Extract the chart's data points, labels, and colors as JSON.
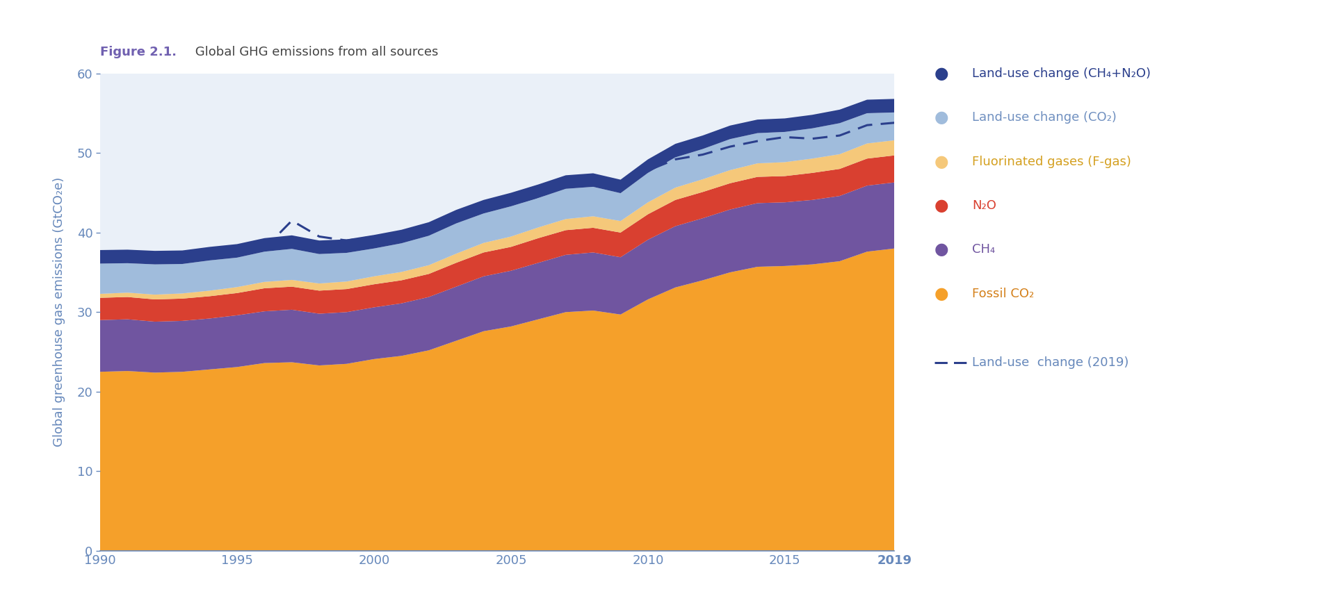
{
  "title_bold": "Figure 2.1.",
  "title_normal": " Global GHG emissions from all sources",
  "ylabel": "Global greenhouse gas emissions (GtCO₂e)",
  "background_color": "#EAF0F8",
  "fig_background": "#FFFFFF",
  "years": [
    1990,
    1991,
    1992,
    1993,
    1994,
    1995,
    1996,
    1997,
    1998,
    1999,
    2000,
    2001,
    2002,
    2003,
    2004,
    2005,
    2006,
    2007,
    2008,
    2009,
    2010,
    2011,
    2012,
    2013,
    2014,
    2015,
    2016,
    2017,
    2018,
    2019
  ],
  "fossil_co2": [
    22.5,
    22.6,
    22.4,
    22.5,
    22.8,
    23.1,
    23.6,
    23.7,
    23.3,
    23.5,
    24.1,
    24.5,
    25.2,
    26.4,
    27.6,
    28.2,
    29.1,
    30.0,
    30.2,
    29.7,
    31.6,
    33.1,
    34.0,
    35.0,
    35.7,
    35.8,
    36.0,
    36.4,
    37.6,
    38.0
  ],
  "ch4": [
    6.5,
    6.5,
    6.4,
    6.4,
    6.4,
    6.5,
    6.5,
    6.6,
    6.5,
    6.5,
    6.5,
    6.6,
    6.7,
    6.8,
    6.9,
    7.0,
    7.1,
    7.2,
    7.3,
    7.2,
    7.5,
    7.7,
    7.8,
    7.9,
    8.0,
    8.0,
    8.1,
    8.2,
    8.3,
    8.3
  ],
  "n2o": [
    2.8,
    2.8,
    2.8,
    2.8,
    2.8,
    2.8,
    2.9,
    2.9,
    2.9,
    2.9,
    2.9,
    2.9,
    2.9,
    3.0,
    3.0,
    3.0,
    3.1,
    3.1,
    3.1,
    3.1,
    3.2,
    3.3,
    3.3,
    3.3,
    3.3,
    3.3,
    3.4,
    3.4,
    3.4,
    3.4
  ],
  "fgas": [
    0.5,
    0.55,
    0.6,
    0.65,
    0.7,
    0.75,
    0.8,
    0.85,
    0.9,
    0.95,
    1.0,
    1.05,
    1.1,
    1.15,
    1.2,
    1.3,
    1.35,
    1.4,
    1.45,
    1.45,
    1.5,
    1.55,
    1.6,
    1.65,
    1.7,
    1.75,
    1.8,
    1.85,
    1.9,
    1.9
  ],
  "luc_co2": [
    3.8,
    3.7,
    3.8,
    3.7,
    3.8,
    3.7,
    3.8,
    3.9,
    3.7,
    3.6,
    3.5,
    3.6,
    3.7,
    3.8,
    3.7,
    3.8,
    3.7,
    3.8,
    3.7,
    3.5,
    3.7,
    3.8,
    3.8,
    3.9,
    3.8,
    3.8,
    3.8,
    3.9,
    3.8,
    3.5
  ],
  "luc_ch4_n2o": [
    1.7,
    1.7,
    1.7,
    1.7,
    1.7,
    1.7,
    1.7,
    1.7,
    1.7,
    1.7,
    1.7,
    1.7,
    1.7,
    1.7,
    1.7,
    1.7,
    1.7,
    1.7,
    1.7,
    1.7,
    1.7,
    1.7,
    1.7,
    1.7,
    1.7,
    1.7,
    1.7,
    1.7,
    1.7,
    1.7
  ],
  "dashed_line": [
    36.5,
    36.8,
    36.7,
    36.8,
    37.2,
    37.5,
    38.0,
    41.5,
    39.5,
    39.0,
    39.5,
    40.0,
    40.8,
    41.8,
    43.0,
    43.5,
    44.5,
    45.8,
    46.2,
    45.5,
    47.8,
    49.2,
    49.8,
    50.8,
    51.5,
    52.0,
    51.8,
    52.2,
    53.5,
    53.8
  ],
  "colors": {
    "fossil_co2": "#F5A02A",
    "ch4": "#7055A0",
    "n2o": "#D94030",
    "fgas": "#F5C87A",
    "luc_co2": "#A0BCDC",
    "luc_ch4_n2o": "#2B3F8C",
    "dashed": "#2B3F8C"
  },
  "legend_labels": [
    "Land-use change (CH₄+N₂O)",
    "Land-use change (CO₂)",
    "Fluorinated gases (F-gas)",
    "N₂O",
    "CH₄",
    "Fossil CO₂"
  ],
  "legend_dot_colors": [
    "#2B3F8C",
    "#A0BCDC",
    "#F5C87A",
    "#D94030",
    "#7055A0",
    "#F5A02A"
  ],
  "legend_text_colors": [
    "#2B3F8C",
    "#7090C0",
    "#D4A020",
    "#D94030",
    "#7055A0",
    "#D4801A"
  ],
  "dashed_label": "Land-use  change (2019)",
  "ylim": [
    0,
    60
  ],
  "yticks": [
    0,
    10,
    20,
    30,
    40,
    50,
    60
  ],
  "xticks": [
    1990,
    1995,
    2000,
    2005,
    2010,
    2015,
    2019
  ],
  "title_color_bold": "#7060B0",
  "title_color_normal": "#444444",
  "axis_color": "#6688BB",
  "tick_color": "#6688BB",
  "label_color": "#6688BB"
}
